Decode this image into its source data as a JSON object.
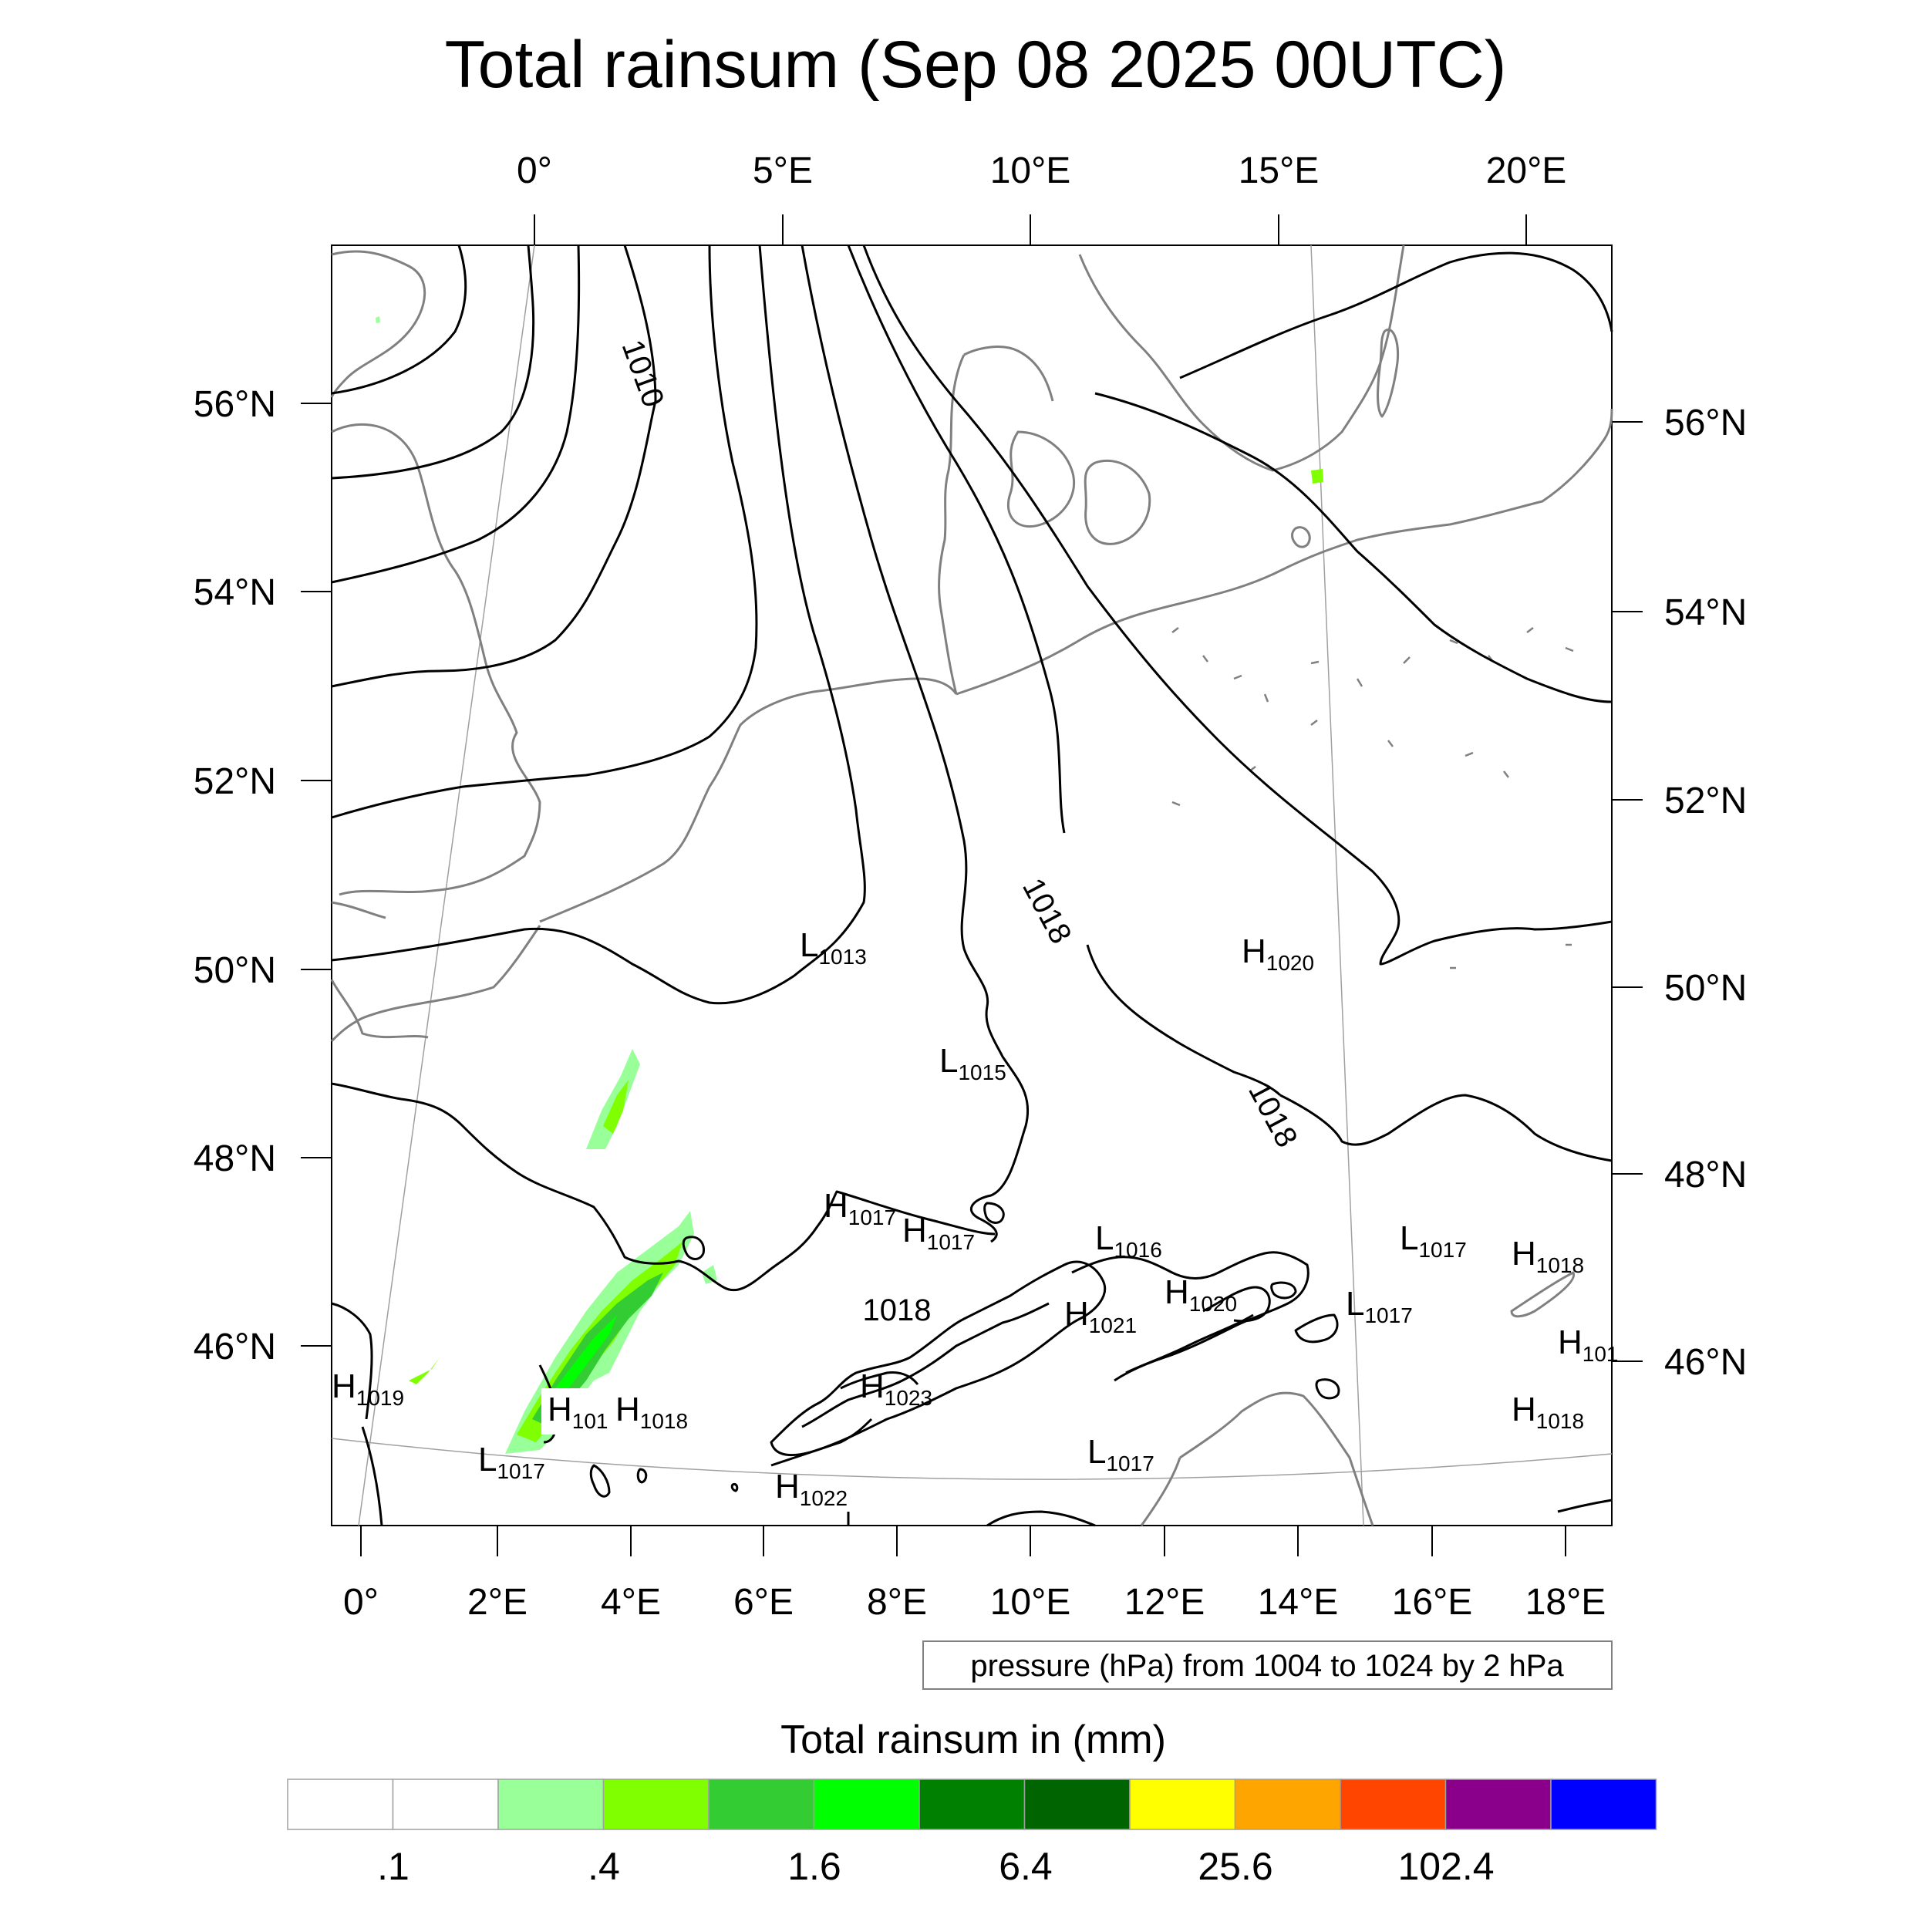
{
  "title": "Total rainsum (Sep 08 2025 00UTC)",
  "top_lon_labels": [
    "0°",
    "5°E",
    "10°E",
    "15°E",
    "20°E"
  ],
  "bottom_lon_labels": [
    "0°",
    "2°E",
    "4°E",
    "6°E",
    "8°E",
    "10°E",
    "12°E",
    "14°E",
    "16°E",
    "18°E"
  ],
  "left_lat_labels": [
    "56°N",
    "54°N",
    "52°N",
    "50°N",
    "48°N",
    "46°N"
  ],
  "right_lat_labels": [
    "56°N",
    "54°N",
    "52°N",
    "50°N",
    "48°N",
    "46°N"
  ],
  "isobar_labels": [
    "1010",
    "1018",
    "1018",
    "1018"
  ],
  "pressure_centers": [
    {
      "type": "L",
      "value": "1013"
    },
    {
      "type": "L",
      "value": "1015"
    },
    {
      "type": "H",
      "value": "1020"
    },
    {
      "type": "H",
      "value": "1017"
    },
    {
      "type": "H",
      "value": "1017"
    },
    {
      "type": "L",
      "value": "1016"
    },
    {
      "type": "L",
      "value": "1017"
    },
    {
      "type": "H",
      "value": "1018"
    },
    {
      "type": "H",
      "value": "1020"
    },
    {
      "type": "H",
      "value": "1021"
    },
    {
      "type": "L",
      "value": "1017"
    },
    {
      "type": "H",
      "value": "101"
    },
    {
      "type": "H",
      "value": "1019"
    },
    {
      "type": "H",
      "value": "1023"
    },
    {
      "type": "H",
      "value": "101"
    },
    {
      "type": "H",
      "value": "1018"
    },
    {
      "type": "H",
      "value": "1018"
    },
    {
      "type": "L",
      "value": "1017"
    },
    {
      "type": "H",
      "value": "1022"
    },
    {
      "type": "L",
      "value": "1017"
    }
  ],
  "pressure_note": "pressure (hPa) from 1004 to 1024 by 2 hPa",
  "colorbar": {
    "title": "Total rainsum in (mm)",
    "colors": [
      "#ffffff",
      "#ffffff",
      "#99ff99",
      "#80ff00",
      "#33cc33",
      "#00ff00",
      "#008000",
      "#006400",
      "#ffff00",
      "#ffa500",
      "#ff4500",
      "#8b008b",
      "#0000ff"
    ],
    "labels": [
      ".1",
      ".4",
      "1.6",
      "6.4",
      "25.6",
      "102.4"
    ]
  },
  "colors": {
    "coastline": "#808080",
    "isobar": "#000000",
    "graticule": "#a0a0a0",
    "rain_light": "#99ff99",
    "rain_mid": "#80ff00",
    "rain_green": "#33cc33",
    "rain_bright": "#00ff00"
  }
}
